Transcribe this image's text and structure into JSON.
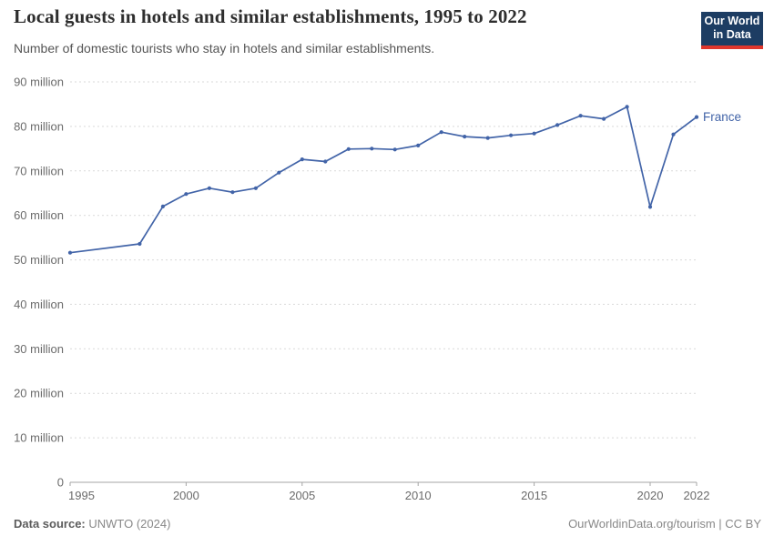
{
  "header": {
    "title": "Local guests in hotels and similar establishments, 1995 to 2022",
    "subtitle": "Number of domestic tourists who stay in hotels and similar establishments.",
    "logo": {
      "line1": "Our World",
      "line2": "in Data",
      "bg_color": "#1d3d63",
      "bar_color": "#e0362c"
    }
  },
  "chart_data": {
    "type": "line",
    "title": "Local guests in hotels and similar establishments, 1995 to 2022",
    "xlabel": "",
    "ylabel": "",
    "unit": "million",
    "x": {
      "min": 1995,
      "max": 2022,
      "ticks": [
        1995,
        2000,
        2005,
        2010,
        2015,
        2020,
        2022
      ]
    },
    "y": {
      "min": 0,
      "max": 90,
      "ticks": [
        0,
        10,
        20,
        30,
        40,
        50,
        60,
        70,
        80,
        90
      ],
      "tick_suffix": " million"
    },
    "grid": "horizontal-dashed",
    "legend_position": "end-of-line-label",
    "series": [
      {
        "name": "France",
        "color": "#4264a8",
        "points": [
          [
            1995,
            51.6
          ],
          [
            1998,
            53.6
          ],
          [
            1999,
            62.0
          ],
          [
            2000,
            64.8
          ],
          [
            2001,
            66.1
          ],
          [
            2002,
            65.2
          ],
          [
            2003,
            66.1
          ],
          [
            2004,
            69.6
          ],
          [
            2005,
            72.6
          ],
          [
            2006,
            72.1
          ],
          [
            2007,
            74.9
          ],
          [
            2008,
            75.0
          ],
          [
            2009,
            74.8
          ],
          [
            2010,
            75.7
          ],
          [
            2011,
            78.7
          ],
          [
            2012,
            77.7
          ],
          [
            2013,
            77.4
          ],
          [
            2014,
            78.0
          ],
          [
            2015,
            78.4
          ],
          [
            2016,
            80.3
          ],
          [
            2017,
            82.4
          ],
          [
            2018,
            81.7
          ],
          [
            2019,
            84.4
          ],
          [
            2020,
            61.9
          ],
          [
            2021,
            78.2
          ],
          [
            2022,
            82.1
          ]
        ]
      }
    ],
    "style": {
      "grid_color": "#d9d9d9",
      "axis_color": "#a5a5a5",
      "axis_text_color": "#6b6b6b",
      "background": "#ffffff"
    }
  },
  "footer": {
    "source_label": "Data source:",
    "source_value": " UNWTO (2024)",
    "link": "OurWorldinData.org/tourism",
    "license": " | CC BY"
  }
}
